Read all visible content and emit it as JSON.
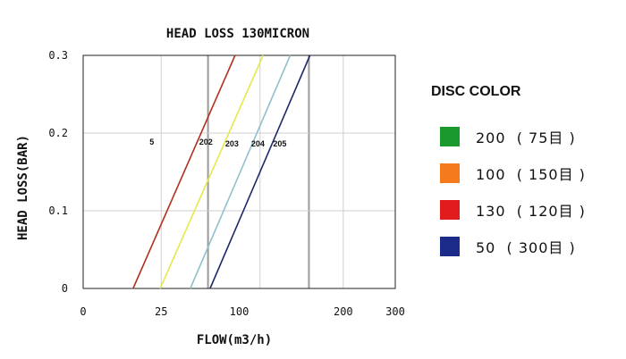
{
  "chart_data": {
    "type": "line",
    "title": "HEAD LOSS 130MICRON",
    "xlabel": "FLOW(m3/h)",
    "ylabel": "HEAD LOSS(BAR)",
    "xlim": [
      0,
      300
    ],
    "ylim": [
      0,
      0.3
    ],
    "x_ticks": [
      {
        "value": 0,
        "label": "0"
      },
      {
        "value": 75,
        "label": "25"
      },
      {
        "value": 150,
        "label": "100"
      },
      {
        "value": 250,
        "label": "200"
      },
      {
        "value": 300,
        "label": "300"
      }
    ],
    "y_ticks": [
      {
        "value": 0,
        "label": "0"
      },
      {
        "value": 0.1,
        "label": "0.1"
      },
      {
        "value": 0.2,
        "label": "0.2"
      },
      {
        "value": 0.3,
        "label": "0.3"
      }
    ],
    "x_gridlines": [
      75,
      120,
      170,
      217,
      250,
      300
    ],
    "y_gridlines": [
      0.1,
      0.2,
      0.3
    ],
    "grid": true,
    "series": [
      {
        "color": "#b0301e",
        "x": [
          48,
          146
        ],
        "y": [
          0,
          0.3
        ]
      },
      {
        "color": "#e8e84a",
        "x": [
          74,
          173
        ],
        "y": [
          0,
          0.3
        ]
      },
      {
        "color": "#8fc0d0",
        "x": [
          103,
          199
        ],
        "y": [
          0,
          0.3
        ]
      },
      {
        "color": "#1c2a6a",
        "x": [
          122,
          218
        ],
        "y": [
          0,
          0.3
        ]
      }
    ],
    "annotations": [
      {
        "text": "5",
        "x": 66,
        "y": 0.185
      },
      {
        "text": "202",
        "x": 118,
        "y": 0.185
      },
      {
        "text": "203",
        "x": 143,
        "y": 0.183
      },
      {
        "text": "204",
        "x": 168,
        "y": 0.183
      },
      {
        "text": "205",
        "x": 189,
        "y": 0.183
      }
    ]
  },
  "legend": {
    "title": "DISC COLOR",
    "items": [
      {
        "label": "200  ( 75目 )",
        "color": "#1a9a2c"
      },
      {
        "label": "100  ( 150目 )",
        "color": "#f47a1c"
      },
      {
        "label": "130  ( 120目 )",
        "color": "#e21c1c"
      },
      {
        "label": "50  ( 300目 )",
        "color": "#1c2a8a"
      }
    ]
  }
}
